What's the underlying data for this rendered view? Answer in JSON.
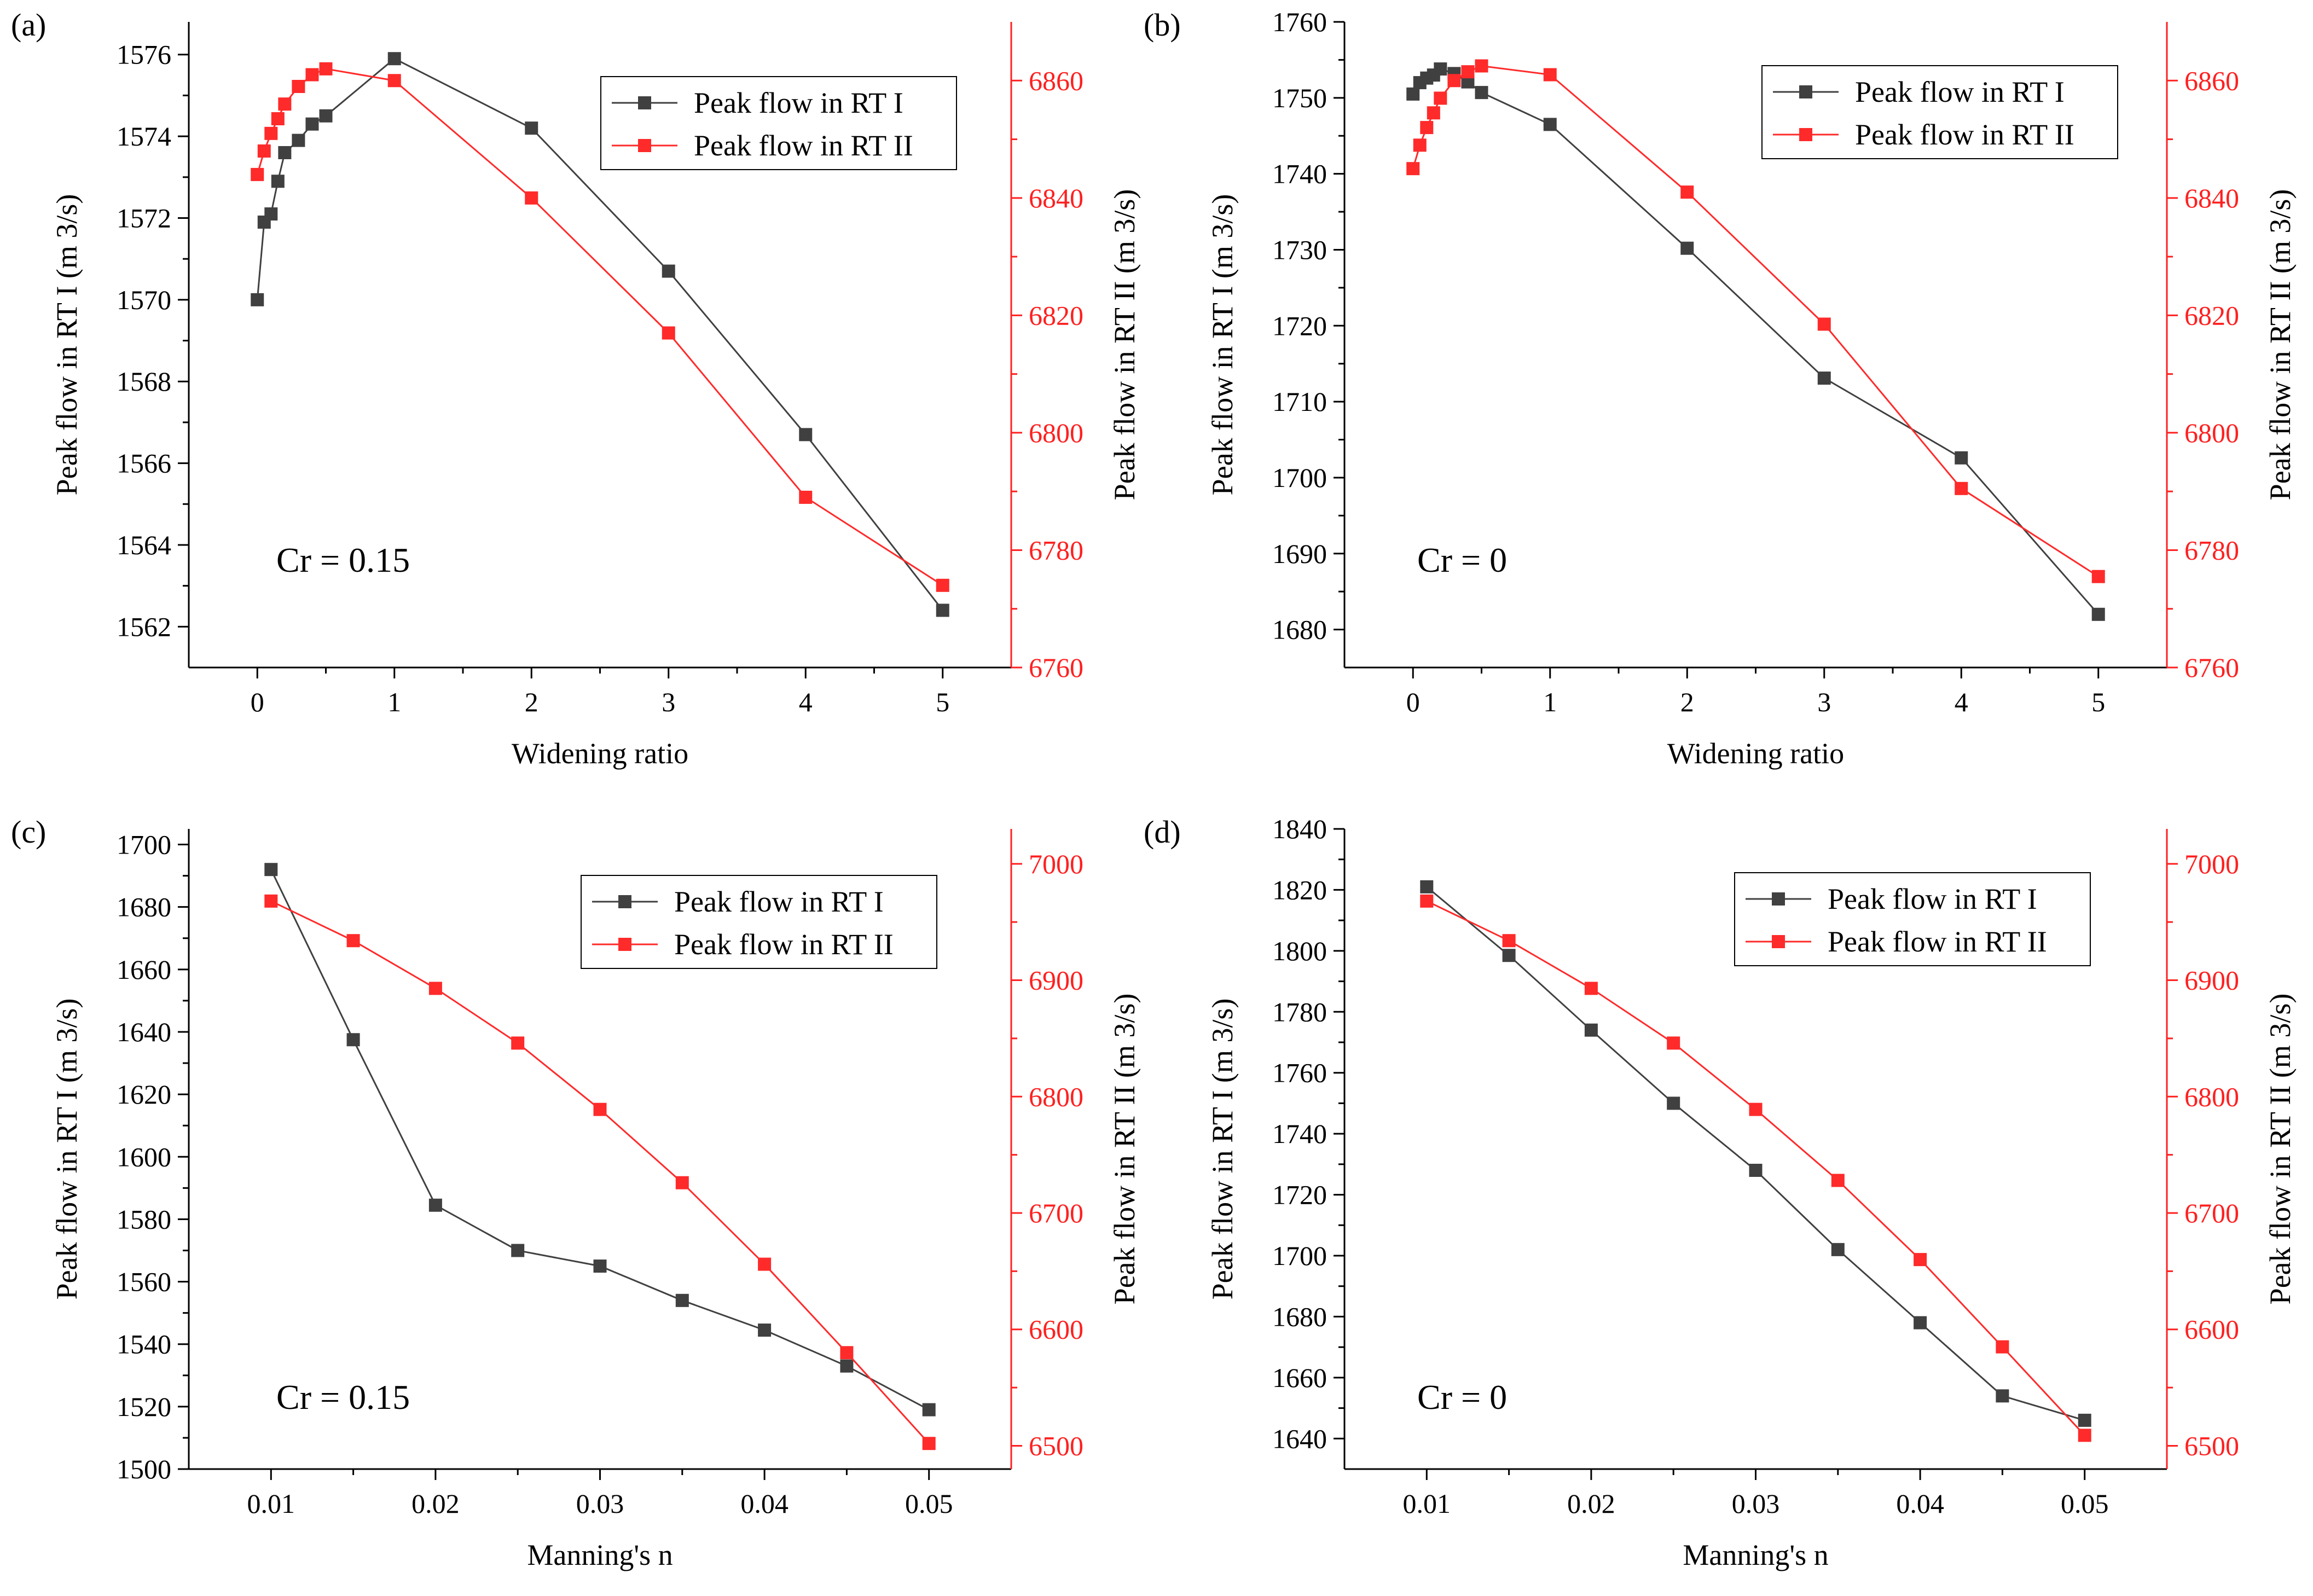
{
  "colors": {
    "series1": "#404040",
    "series2": "#ff2a2a",
    "axis": "#000000",
    "right_axis": "#ff2020"
  },
  "chart_data": [
    {
      "type": "line",
      "panel_label": "(a)",
      "annotation": "Cr = 0.15",
      "xlabel": "Widening ratio",
      "ylabel": "Peak flow in RT I (m 3/s)",
      "y2label": "Peak flow in RT II (m 3/s)",
      "xlim": [
        -0.5,
        5.5
      ],
      "ylim": [
        1561,
        1576.8
      ],
      "y2lim": [
        6760,
        6870
      ],
      "xticks": [
        0,
        1,
        2,
        3,
        4,
        5
      ],
      "xtick_labels": [
        "0",
        "1",
        "2",
        "3",
        "4",
        "5"
      ],
      "yticks": [
        1562,
        1564,
        1566,
        1568,
        1570,
        1572,
        1574,
        1576
      ],
      "y2ticks": [
        6760,
        6780,
        6800,
        6820,
        6840,
        6860
      ],
      "legend_position": "top-right",
      "series": [
        {
          "name": "Peak flow in RT I",
          "axis": "left",
          "x": [
            0,
            0.05,
            0.1,
            0.15,
            0.2,
            0.3,
            0.4,
            0.5,
            1,
            2,
            3,
            4,
            5
          ],
          "y": [
            1570.0,
            1571.9,
            1572.1,
            1572.9,
            1573.6,
            1573.9,
            1574.3,
            1574.5,
            1575.9,
            1574.2,
            1570.7,
            1566.7,
            1562.4
          ]
        },
        {
          "name": "Peak flow in RT II",
          "axis": "right",
          "x": [
            0,
            0.05,
            0.1,
            0.15,
            0.2,
            0.3,
            0.4,
            0.5,
            1,
            2,
            3,
            4,
            5
          ],
          "y": [
            6844,
            6848,
            6851,
            6853.5,
            6856,
            6859,
            6861,
            6862,
            6860,
            6840,
            6817,
            6789,
            6774
          ]
        }
      ]
    },
    {
      "type": "line",
      "panel_label": "(b)",
      "annotation": "Cr = 0",
      "xlabel": "Widening ratio",
      "ylabel": "Peak flow in RT I (m 3/s)",
      "y2label": "Peak flow in RT II (m 3/s)",
      "xlim": [
        -0.5,
        5.5
      ],
      "ylim": [
        1675,
        1760
      ],
      "y2lim": [
        6760,
        6870
      ],
      "xticks": [
        0,
        1,
        2,
        3,
        4,
        5
      ],
      "xtick_labels": [
        "0",
        "1",
        "2",
        "3",
        "4",
        "5"
      ],
      "yticks": [
        1680,
        1690,
        1700,
        1710,
        1720,
        1730,
        1740,
        1750,
        1760
      ],
      "y2ticks": [
        6760,
        6780,
        6800,
        6820,
        6840,
        6860
      ],
      "legend_position": "top-right",
      "series": [
        {
          "name": "Peak flow in RT I",
          "axis": "left",
          "x": [
            0,
            0.05,
            0.1,
            0.15,
            0.2,
            0.3,
            0.4,
            0.5,
            1,
            2,
            3,
            4,
            5
          ],
          "y": [
            1750.5,
            1752.0,
            1752.6,
            1753.0,
            1753.8,
            1753.2,
            1752.1,
            1750.7,
            1746.5,
            1730.2,
            1713.1,
            1702.6,
            1682.0
          ]
        },
        {
          "name": "Peak flow in RT II",
          "axis": "right",
          "x": [
            0,
            0.05,
            0.1,
            0.15,
            0.2,
            0.3,
            0.4,
            0.5,
            1,
            2,
            3,
            4,
            5
          ],
          "y": [
            6845,
            6849,
            6852,
            6854.5,
            6857,
            6860,
            6861.5,
            6862.5,
            6861,
            6841,
            6818.5,
            6790.5,
            6775.5
          ]
        }
      ]
    },
    {
      "type": "line",
      "panel_label": "(c)",
      "annotation": "Cr = 0.15",
      "xlabel": "Manning's n",
      "ylabel": "Peak flow in RT I (m 3/s)",
      "y2label": "Peak flow in RT II (m 3/s)",
      "xlim": [
        0.005,
        0.055
      ],
      "ylim": [
        1500,
        1705
      ],
      "y2lim": [
        6480,
        7030
      ],
      "xticks": [
        0.01,
        0.02,
        0.03,
        0.04,
        0.05
      ],
      "xtick_labels": [
        "0.01",
        "0.02",
        "0.03",
        "0.04",
        "0.05"
      ],
      "yticks": [
        1500,
        1520,
        1540,
        1560,
        1580,
        1600,
        1620,
        1640,
        1660,
        1680,
        1700
      ],
      "y2ticks": [
        6500,
        6600,
        6700,
        6800,
        6900,
        7000
      ],
      "legend_position": "top-right",
      "series": [
        {
          "name": "Peak flow in RT I",
          "axis": "left",
          "x": [
            0.01,
            0.015,
            0.02,
            0.025,
            0.03,
            0.035,
            0.04,
            0.045,
            0.05
          ],
          "y": [
            1692,
            1637.5,
            1584.5,
            1570,
            1565,
            1554,
            1544.5,
            1533,
            1519
          ]
        },
        {
          "name": "Peak flow in RT II",
          "axis": "right",
          "x": [
            0.01,
            0.015,
            0.02,
            0.025,
            0.03,
            0.035,
            0.04,
            0.045,
            0.05
          ],
          "y": [
            6968,
            6934,
            6893,
            6846,
            6789,
            6726,
            6656,
            6580,
            6502
          ]
        }
      ]
    },
    {
      "type": "line",
      "panel_label": "(d)",
      "annotation": "Cr = 0",
      "xlabel": "Manning's n",
      "ylabel": "Peak flow in RT I (m 3/s)",
      "y2label": "Peak flow in RT II (m 3/s)",
      "xlim": [
        0.005,
        0.055
      ],
      "ylim": [
        1630,
        1840
      ],
      "y2lim": [
        6480,
        7030
      ],
      "xticks": [
        0.01,
        0.02,
        0.03,
        0.04,
        0.05
      ],
      "xtick_labels": [
        "0.01",
        "0.02",
        "0.03",
        "0.04",
        "0.05"
      ],
      "yticks": [
        1640,
        1660,
        1680,
        1700,
        1720,
        1740,
        1760,
        1780,
        1800,
        1820,
        1840
      ],
      "y2ticks": [
        6500,
        6600,
        6700,
        6800,
        6900,
        7000
      ],
      "legend_position": "top-right",
      "series": [
        {
          "name": "Peak flow in RT I",
          "axis": "left",
          "x": [
            0.01,
            0.015,
            0.02,
            0.025,
            0.03,
            0.035,
            0.04,
            0.045,
            0.05
          ],
          "y": [
            1821,
            1798.5,
            1774,
            1750,
            1728,
            1702,
            1678,
            1654,
            1646
          ]
        },
        {
          "name": "Peak flow in RT II",
          "axis": "right",
          "x": [
            0.01,
            0.015,
            0.02,
            0.025,
            0.03,
            0.035,
            0.04,
            0.045,
            0.05
          ],
          "y": [
            6968,
            6934,
            6893,
            6846,
            6789,
            6728,
            6660,
            6585,
            6509
          ]
        }
      ]
    }
  ]
}
